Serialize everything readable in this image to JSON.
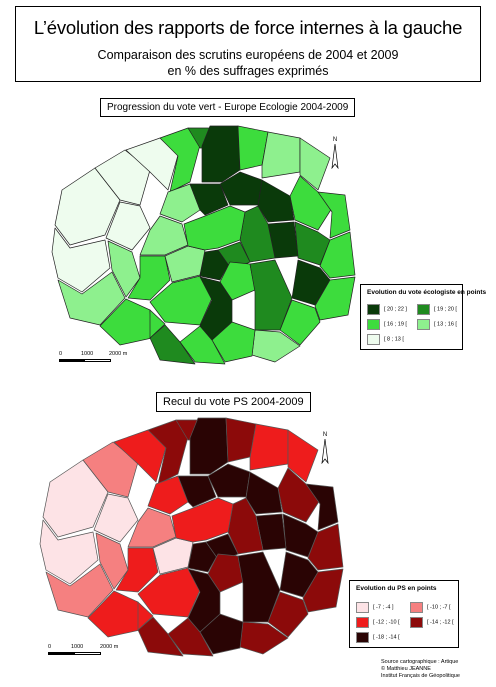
{
  "header": {
    "title": "L’évolution des rapports de force internes à la gauche",
    "subtitle_line1": "Comparaison des scrutins européens de 2004 et 2009",
    "subtitle_line2": "en % des suffrages exprimés"
  },
  "map1": {
    "title": "Progression du vote vert - Europe Ecologie 2004-2009",
    "legend_title": "Evolution du vote écologiste en points",
    "classes": [
      {
        "label": "[ 20 ; 22 ]",
        "color": "#0a3a0a"
      },
      {
        "label": "[ 19 ; 20 [",
        "color": "#1f8a1f"
      },
      {
        "label": "[ 16 ; 19 [",
        "color": "#3ddc3d"
      },
      {
        "label": "[ 13 ; 16 [",
        "color": "#8ef08e"
      },
      {
        "label": "[ 8 ; 13 [",
        "color": "#eefcee"
      }
    ],
    "north": "N",
    "scale": {
      "s0": "0",
      "s1": "1000",
      "s2": "2000 m"
    }
  },
  "map2": {
    "title": "Recul du vote PS 2004-2009",
    "legend_title": "Evolution du PS en points",
    "classes": [
      {
        "label": "[ -7 ; -4 ]",
        "color": "#fde3e6"
      },
      {
        "label": "[ -10 ; -7 [",
        "color": "#f58080"
      },
      {
        "label": "[ -12 ; -10 [",
        "color": "#ee1c1c"
      },
      {
        "label": "[ -14 ; -12 [",
        "color": "#8c0a0a"
      },
      {
        "label": "[ -18 ; -14 [",
        "color": "#2a0404"
      }
    ],
    "north": "N",
    "scale": {
      "s0": "0",
      "s1": "1000",
      "s2": "2000 m"
    }
  },
  "credits": {
    "line1": "Source cartographique : Artique",
    "line2": "© Matthieu JEANNE",
    "line3": "Institut Français de Géopolitique"
  }
}
